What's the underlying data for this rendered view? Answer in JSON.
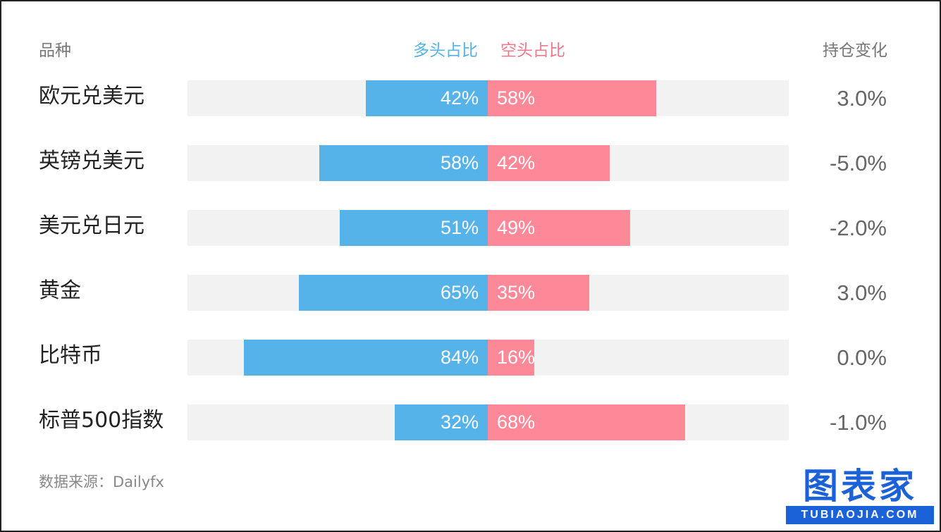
{
  "chart_data": {
    "type": "bar",
    "title": "",
    "headers": {
      "name": "品种",
      "long": "多头占比",
      "short": "空头占比",
      "change": "持仓变化"
    },
    "categories": [
      "欧元兑美元",
      "英镑兑美元",
      "美元兑日元",
      "黄金",
      "比特币",
      "标普500指数"
    ],
    "series": [
      {
        "name": "多头占比",
        "color": "#56b3e9",
        "values": [
          42,
          58,
          51,
          65,
          84,
          32
        ],
        "labels": [
          "42%",
          "58%",
          "51%",
          "65%",
          "84%",
          "32%"
        ]
      },
      {
        "name": "空头占比",
        "color": "#fd8898",
        "values": [
          58,
          42,
          49,
          35,
          16,
          68
        ],
        "labels": [
          "58%",
          "42%",
          "49%",
          "35%",
          "16%",
          "68%"
        ]
      }
    ],
    "change": [
      "3.0%",
      "-5.0%",
      "-2.0%",
      "3.0%",
      "0.0%",
      "-1.0%"
    ],
    "xlim": [
      0,
      100
    ]
  },
  "source": "数据来源：Dailyfx",
  "logo": {
    "text": "图表家",
    "sub": "TUBIAOJIA.COM"
  }
}
